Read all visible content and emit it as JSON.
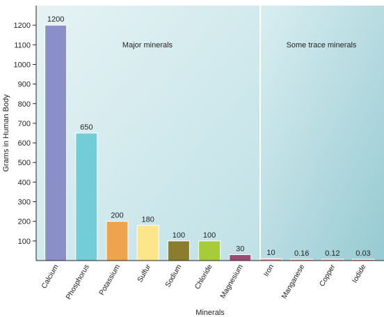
{
  "chart_data": {
    "type": "bar",
    "xlabel": "Minerals",
    "ylabel": "Grams in Human Body",
    "ylim": [
      0,
      1300
    ],
    "yticks": [
      100,
      200,
      300,
      400,
      500,
      600,
      700,
      800,
      900,
      1000,
      1100,
      1200
    ],
    "categories": [
      "Calcium",
      "Phosphorus",
      "Potassium",
      "Sulfur",
      "Sodium",
      "Chloride",
      "Magnesium",
      "Iron",
      "Manganese",
      "Copper",
      "Iodide"
    ],
    "values": [
      1200,
      650,
      200,
      180,
      100,
      100,
      30,
      10,
      0.16,
      0.12,
      0.03
    ],
    "value_labels": [
      "1200",
      "650",
      "200",
      "180",
      "100",
      "100",
      "30",
      "10",
      "0.16",
      "0.12",
      "0.03"
    ],
    "bar_colors": [
      "#8a8fc9",
      "#72cdd9",
      "#eea44c",
      "#fde58c",
      "#8b7d2e",
      "#a6cc3a",
      "#9b4a72",
      "#f2a6a6",
      "#f2a6a6",
      "#f2a6a6",
      "#f2a6a6"
    ],
    "regions": [
      {
        "label": "Major minerals",
        "categories": [
          "Calcium",
          "Phosphorus",
          "Potassium",
          "Sulfur",
          "Sodium",
          "Chloride",
          "Magnesium"
        ]
      },
      {
        "label": "Some trace minerals",
        "categories": [
          "Iron",
          "Manganese",
          "Copper",
          "Iodide"
        ]
      }
    ],
    "grid": false,
    "legend": "none"
  }
}
